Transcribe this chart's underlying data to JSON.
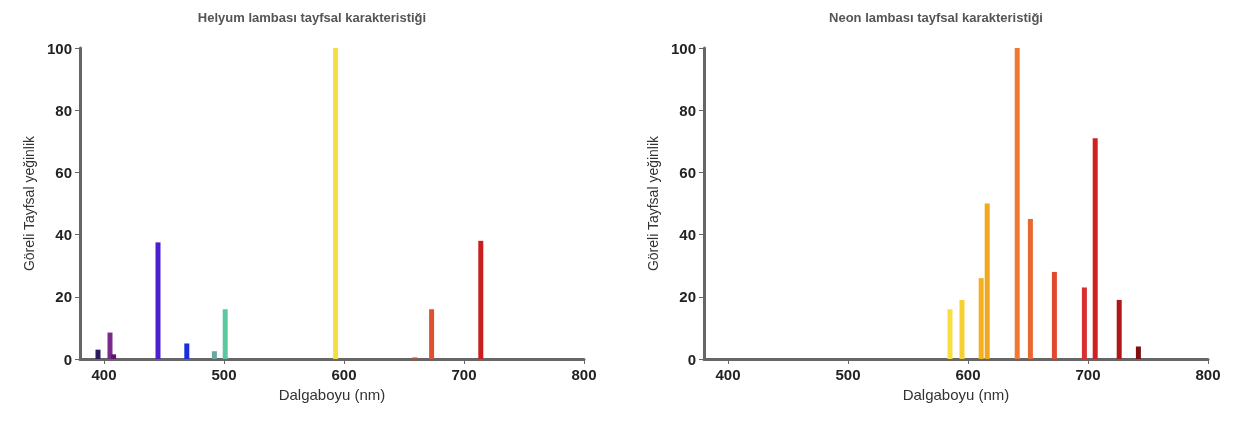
{
  "chart_data": [
    {
      "type": "bar",
      "title": "Helyum lambası tayfsal karakteristiği",
      "xlabel": "Dalgaboyu (nm)",
      "ylabel": "Göreli Tayfsal yeğinlik",
      "x": [
        395,
        405,
        408,
        445,
        469,
        492,
        501,
        593,
        659,
        673,
        714
      ],
      "values": [
        3,
        8.5,
        1.5,
        37.5,
        5,
        2.5,
        16,
        100,
        0.5,
        16,
        38
      ],
      "colors": [
        "#2a1a5e",
        "#7a2a8a",
        "#5a1a6a",
        "#4b1fd0",
        "#1a2ee0",
        "#6aa8a0",
        "#5cc8a0",
        "#f3e040",
        "#c05030",
        "#e05030",
        "#c81e1e"
      ],
      "xlim": [
        380,
        800
      ],
      "xticks": [
        400,
        500,
        600,
        700,
        800
      ],
      "ylim": [
        0,
        100
      ],
      "yticks": [
        0,
        20,
        40,
        60,
        80,
        100
      ],
      "grid": false
    },
    {
      "type": "bar",
      "title": "Neon lambası tayfsal karakteristiği",
      "xlabel": "Dalgaboyu (nm)",
      "ylabel": "Göreli Tayfsal yeğinlik",
      "x": [
        585,
        595,
        611,
        616,
        641,
        652,
        672,
        697,
        706,
        726,
        742
      ],
      "values": [
        16,
        19,
        26,
        50,
        100,
        45,
        28,
        23,
        71,
        19,
        4
      ],
      "colors": [
        "#f5e040",
        "#f5d030",
        "#f5b020",
        "#f0a820",
        "#f07830",
        "#e86830",
        "#e04830",
        "#d83030",
        "#d02020",
        "#b01818",
        "#801010"
      ],
      "xlim": [
        380,
        800
      ],
      "xticks": [
        400,
        500,
        600,
        700,
        800
      ],
      "ylim": [
        0,
        100
      ],
      "yticks": [
        0,
        20,
        40,
        60,
        80,
        100
      ],
      "grid": false
    }
  ]
}
